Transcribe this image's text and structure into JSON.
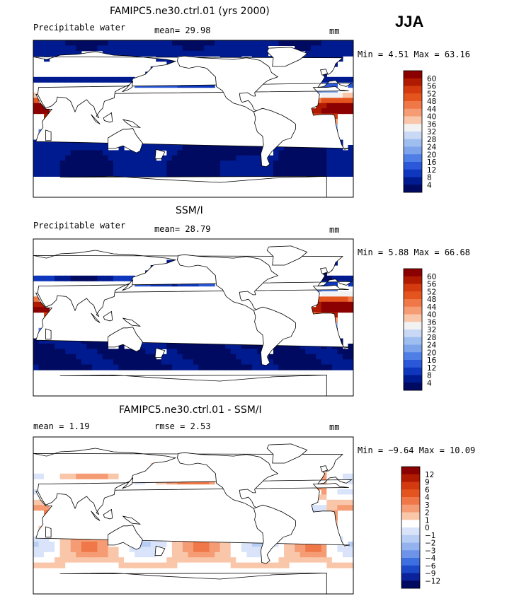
{
  "season": "JJA",
  "panels": [
    {
      "title": "FAMIPC5.ne30.ctrl.01 (yrs 2000)",
      "left_label": "Precipitable water",
      "center_label": "mean=   29.98",
      "units": "mm",
      "stats": "Min =    4.51  Max =   63.16",
      "colorbar": [
        "60",
        "56",
        "52",
        "48",
        "44",
        "40",
        "36",
        "32",
        "28",
        "24",
        "20",
        "16",
        "12",
        "8",
        "4"
      ],
      "field": "model"
    },
    {
      "title": "SSM/I",
      "left_label": "Precipitable water",
      "center_label": "mean=   28.79",
      "units": "mm",
      "stats": "Min =    5.88  Max =   66.68",
      "colorbar": [
        "60",
        "56",
        "52",
        "48",
        "44",
        "40",
        "36",
        "32",
        "28",
        "24",
        "20",
        "16",
        "12",
        "8",
        "4"
      ],
      "field": "obs"
    },
    {
      "title": "FAMIPC5.ne30.ctrl.01 - SSM/I",
      "left_label": "mean =     1.19",
      "center_label": "rmse =     2.53",
      "units": "mm",
      "stats": "Min =   −9.64  Max =   10.09",
      "colorbar": [
        "12",
        "9",
        "6",
        "4",
        "3",
        "2",
        "1",
        "0",
        "−1",
        "−2",
        "−3",
        "−4",
        "−6",
        "−9",
        "−12"
      ],
      "field": "diff"
    }
  ],
  "colors": {
    "abs": [
      "#8b0000",
      "#b01a00",
      "#d43a10",
      "#e4541f",
      "#f07848",
      "#f59c74",
      "#f9c6aa",
      "#f2f2f2",
      "#c9d8f5",
      "#9fbef0",
      "#7da3eb",
      "#4f7ee6",
      "#2a58d8",
      "#0f37bd",
      "#001a90",
      "#000a60"
    ],
    "diff": [
      "#8b0000",
      "#b01a00",
      "#d43a10",
      "#e4541f",
      "#f07848",
      "#f59c74",
      "#f9c6aa",
      "#ffffff",
      "#d9e4fa",
      "#b8cdf4",
      "#93b2ee",
      "#6d94e8",
      "#3e6fe0",
      "#1c47c6",
      "#0a239a",
      "#000a60"
    ]
  }
}
